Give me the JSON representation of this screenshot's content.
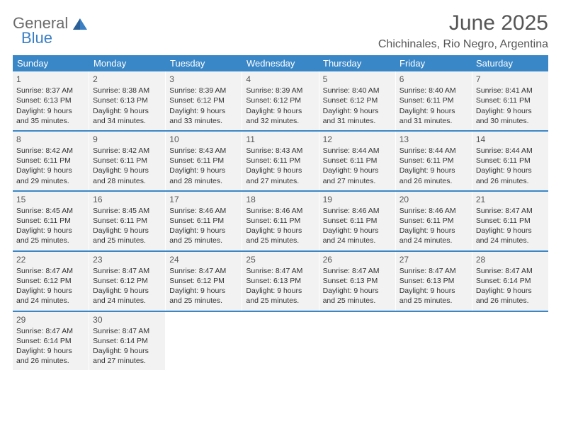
{
  "logo": {
    "text_general": "General",
    "text_blue": "Blue"
  },
  "colors": {
    "header_bg": "#3a87c7",
    "cell_bg": "#f2f2f2",
    "divider": "#3a87c7",
    "logo_gray": "#6b6b6b",
    "logo_blue": "#3a7fc4"
  },
  "title": "June 2025",
  "location": "Chichinales, Rio Negro, Argentina",
  "weekdays": [
    "Sunday",
    "Monday",
    "Tuesday",
    "Wednesday",
    "Thursday",
    "Friday",
    "Saturday"
  ],
  "weeks": [
    [
      {
        "num": "1",
        "sunrise": "Sunrise: 8:37 AM",
        "sunset": "Sunset: 6:13 PM",
        "day1": "Daylight: 9 hours",
        "day2": "and 35 minutes."
      },
      {
        "num": "2",
        "sunrise": "Sunrise: 8:38 AM",
        "sunset": "Sunset: 6:13 PM",
        "day1": "Daylight: 9 hours",
        "day2": "and 34 minutes."
      },
      {
        "num": "3",
        "sunrise": "Sunrise: 8:39 AM",
        "sunset": "Sunset: 6:12 PM",
        "day1": "Daylight: 9 hours",
        "day2": "and 33 minutes."
      },
      {
        "num": "4",
        "sunrise": "Sunrise: 8:39 AM",
        "sunset": "Sunset: 6:12 PM",
        "day1": "Daylight: 9 hours",
        "day2": "and 32 minutes."
      },
      {
        "num": "5",
        "sunrise": "Sunrise: 8:40 AM",
        "sunset": "Sunset: 6:12 PM",
        "day1": "Daylight: 9 hours",
        "day2": "and 31 minutes."
      },
      {
        "num": "6",
        "sunrise": "Sunrise: 8:40 AM",
        "sunset": "Sunset: 6:11 PM",
        "day1": "Daylight: 9 hours",
        "day2": "and 31 minutes."
      },
      {
        "num": "7",
        "sunrise": "Sunrise: 8:41 AM",
        "sunset": "Sunset: 6:11 PM",
        "day1": "Daylight: 9 hours",
        "day2": "and 30 minutes."
      }
    ],
    [
      {
        "num": "8",
        "sunrise": "Sunrise: 8:42 AM",
        "sunset": "Sunset: 6:11 PM",
        "day1": "Daylight: 9 hours",
        "day2": "and 29 minutes."
      },
      {
        "num": "9",
        "sunrise": "Sunrise: 8:42 AM",
        "sunset": "Sunset: 6:11 PM",
        "day1": "Daylight: 9 hours",
        "day2": "and 28 minutes."
      },
      {
        "num": "10",
        "sunrise": "Sunrise: 8:43 AM",
        "sunset": "Sunset: 6:11 PM",
        "day1": "Daylight: 9 hours",
        "day2": "and 28 minutes."
      },
      {
        "num": "11",
        "sunrise": "Sunrise: 8:43 AM",
        "sunset": "Sunset: 6:11 PM",
        "day1": "Daylight: 9 hours",
        "day2": "and 27 minutes."
      },
      {
        "num": "12",
        "sunrise": "Sunrise: 8:44 AM",
        "sunset": "Sunset: 6:11 PM",
        "day1": "Daylight: 9 hours",
        "day2": "and 27 minutes."
      },
      {
        "num": "13",
        "sunrise": "Sunrise: 8:44 AM",
        "sunset": "Sunset: 6:11 PM",
        "day1": "Daylight: 9 hours",
        "day2": "and 26 minutes."
      },
      {
        "num": "14",
        "sunrise": "Sunrise: 8:44 AM",
        "sunset": "Sunset: 6:11 PM",
        "day1": "Daylight: 9 hours",
        "day2": "and 26 minutes."
      }
    ],
    [
      {
        "num": "15",
        "sunrise": "Sunrise: 8:45 AM",
        "sunset": "Sunset: 6:11 PM",
        "day1": "Daylight: 9 hours",
        "day2": "and 25 minutes."
      },
      {
        "num": "16",
        "sunrise": "Sunrise: 8:45 AM",
        "sunset": "Sunset: 6:11 PM",
        "day1": "Daylight: 9 hours",
        "day2": "and 25 minutes."
      },
      {
        "num": "17",
        "sunrise": "Sunrise: 8:46 AM",
        "sunset": "Sunset: 6:11 PM",
        "day1": "Daylight: 9 hours",
        "day2": "and 25 minutes."
      },
      {
        "num": "18",
        "sunrise": "Sunrise: 8:46 AM",
        "sunset": "Sunset: 6:11 PM",
        "day1": "Daylight: 9 hours",
        "day2": "and 25 minutes."
      },
      {
        "num": "19",
        "sunrise": "Sunrise: 8:46 AM",
        "sunset": "Sunset: 6:11 PM",
        "day1": "Daylight: 9 hours",
        "day2": "and 24 minutes."
      },
      {
        "num": "20",
        "sunrise": "Sunrise: 8:46 AM",
        "sunset": "Sunset: 6:11 PM",
        "day1": "Daylight: 9 hours",
        "day2": "and 24 minutes."
      },
      {
        "num": "21",
        "sunrise": "Sunrise: 8:47 AM",
        "sunset": "Sunset: 6:11 PM",
        "day1": "Daylight: 9 hours",
        "day2": "and 24 minutes."
      }
    ],
    [
      {
        "num": "22",
        "sunrise": "Sunrise: 8:47 AM",
        "sunset": "Sunset: 6:12 PM",
        "day1": "Daylight: 9 hours",
        "day2": "and 24 minutes."
      },
      {
        "num": "23",
        "sunrise": "Sunrise: 8:47 AM",
        "sunset": "Sunset: 6:12 PM",
        "day1": "Daylight: 9 hours",
        "day2": "and 24 minutes."
      },
      {
        "num": "24",
        "sunrise": "Sunrise: 8:47 AM",
        "sunset": "Sunset: 6:12 PM",
        "day1": "Daylight: 9 hours",
        "day2": "and 25 minutes."
      },
      {
        "num": "25",
        "sunrise": "Sunrise: 8:47 AM",
        "sunset": "Sunset: 6:13 PM",
        "day1": "Daylight: 9 hours",
        "day2": "and 25 minutes."
      },
      {
        "num": "26",
        "sunrise": "Sunrise: 8:47 AM",
        "sunset": "Sunset: 6:13 PM",
        "day1": "Daylight: 9 hours",
        "day2": "and 25 minutes."
      },
      {
        "num": "27",
        "sunrise": "Sunrise: 8:47 AM",
        "sunset": "Sunset: 6:13 PM",
        "day1": "Daylight: 9 hours",
        "day2": "and 25 minutes."
      },
      {
        "num": "28",
        "sunrise": "Sunrise: 8:47 AM",
        "sunset": "Sunset: 6:14 PM",
        "day1": "Daylight: 9 hours",
        "day2": "and 26 minutes."
      }
    ],
    [
      {
        "num": "29",
        "sunrise": "Sunrise: 8:47 AM",
        "sunset": "Sunset: 6:14 PM",
        "day1": "Daylight: 9 hours",
        "day2": "and 26 minutes."
      },
      {
        "num": "30",
        "sunrise": "Sunrise: 8:47 AM",
        "sunset": "Sunset: 6:14 PM",
        "day1": "Daylight: 9 hours",
        "day2": "and 27 minutes."
      },
      null,
      null,
      null,
      null,
      null
    ]
  ]
}
